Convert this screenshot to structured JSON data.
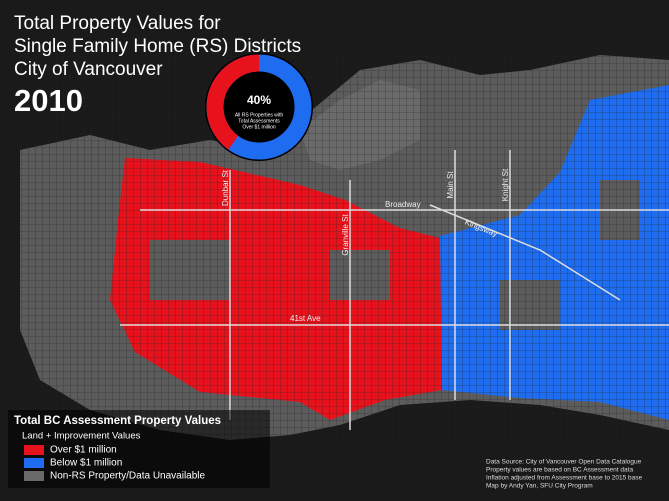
{
  "header": {
    "title_lines": [
      "Total Property Values for",
      "Single Family Home (RS) Districts",
      "City of Vancouver"
    ],
    "year": "2010"
  },
  "donut": {
    "value": 40,
    "value_label": "40%",
    "caption_lines": [
      "All RS Properties with",
      "Total Assessments",
      "Over $1 million"
    ],
    "color": "#e8121c",
    "rest_color": "#1e6cf0"
  },
  "streets": [
    "Dunbar St",
    "Granville St",
    "Main St",
    "Knight St",
    "Broadway",
    "Kingsway",
    "41st Ave"
  ],
  "legend": {
    "title": "Total BC Assessment Property Values",
    "subtitle": "Land + Improvement  Values",
    "items": [
      {
        "label": "Over $1 million",
        "color": "#e8121c"
      },
      {
        "label": "Below $1 million",
        "color": "#1e6cf0"
      },
      {
        "label": "Non-RS Property/Data Unavailable",
        "color": "#6a6a6a"
      }
    ]
  },
  "source_lines": [
    "Data Source: City of Vancouver Open Data Catalogue",
    "Property values are based on BC Assessment data",
    "Inflation adjusted from Assessment base to 2015 base",
    "Map by Andy Yan, SFU City Program"
  ]
}
